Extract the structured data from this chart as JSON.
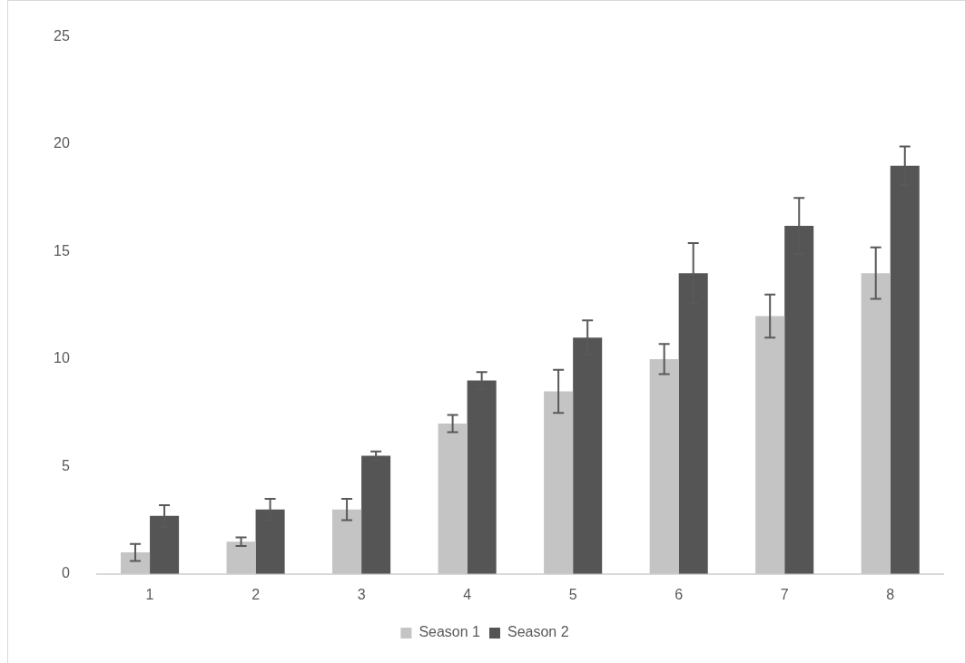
{
  "chart_data": {
    "type": "bar",
    "categories": [
      "1",
      "2",
      "3",
      "4",
      "5",
      "6",
      "7",
      "8"
    ],
    "series": [
      {
        "name": "Season 1",
        "color": "#c4c4c4",
        "values": [
          1,
          1.5,
          3,
          7,
          8.5,
          10,
          12,
          14
        ],
        "errors": [
          0.4,
          0.2,
          0.5,
          0.4,
          1,
          0.7,
          1,
          1.2
        ]
      },
      {
        "name": "Season 2",
        "color": "#555555",
        "values": [
          2.7,
          3,
          5.5,
          9,
          11,
          14,
          16.2,
          19
        ],
        "errors": [
          0.5,
          0.5,
          0.2,
          0.4,
          0.8,
          1.4,
          1.3,
          0.9
        ]
      }
    ],
    "ylim": [
      0,
      25
    ],
    "yticks": [
      0,
      5,
      10,
      15,
      20,
      25
    ],
    "grid": false,
    "legend": "bottom"
  }
}
